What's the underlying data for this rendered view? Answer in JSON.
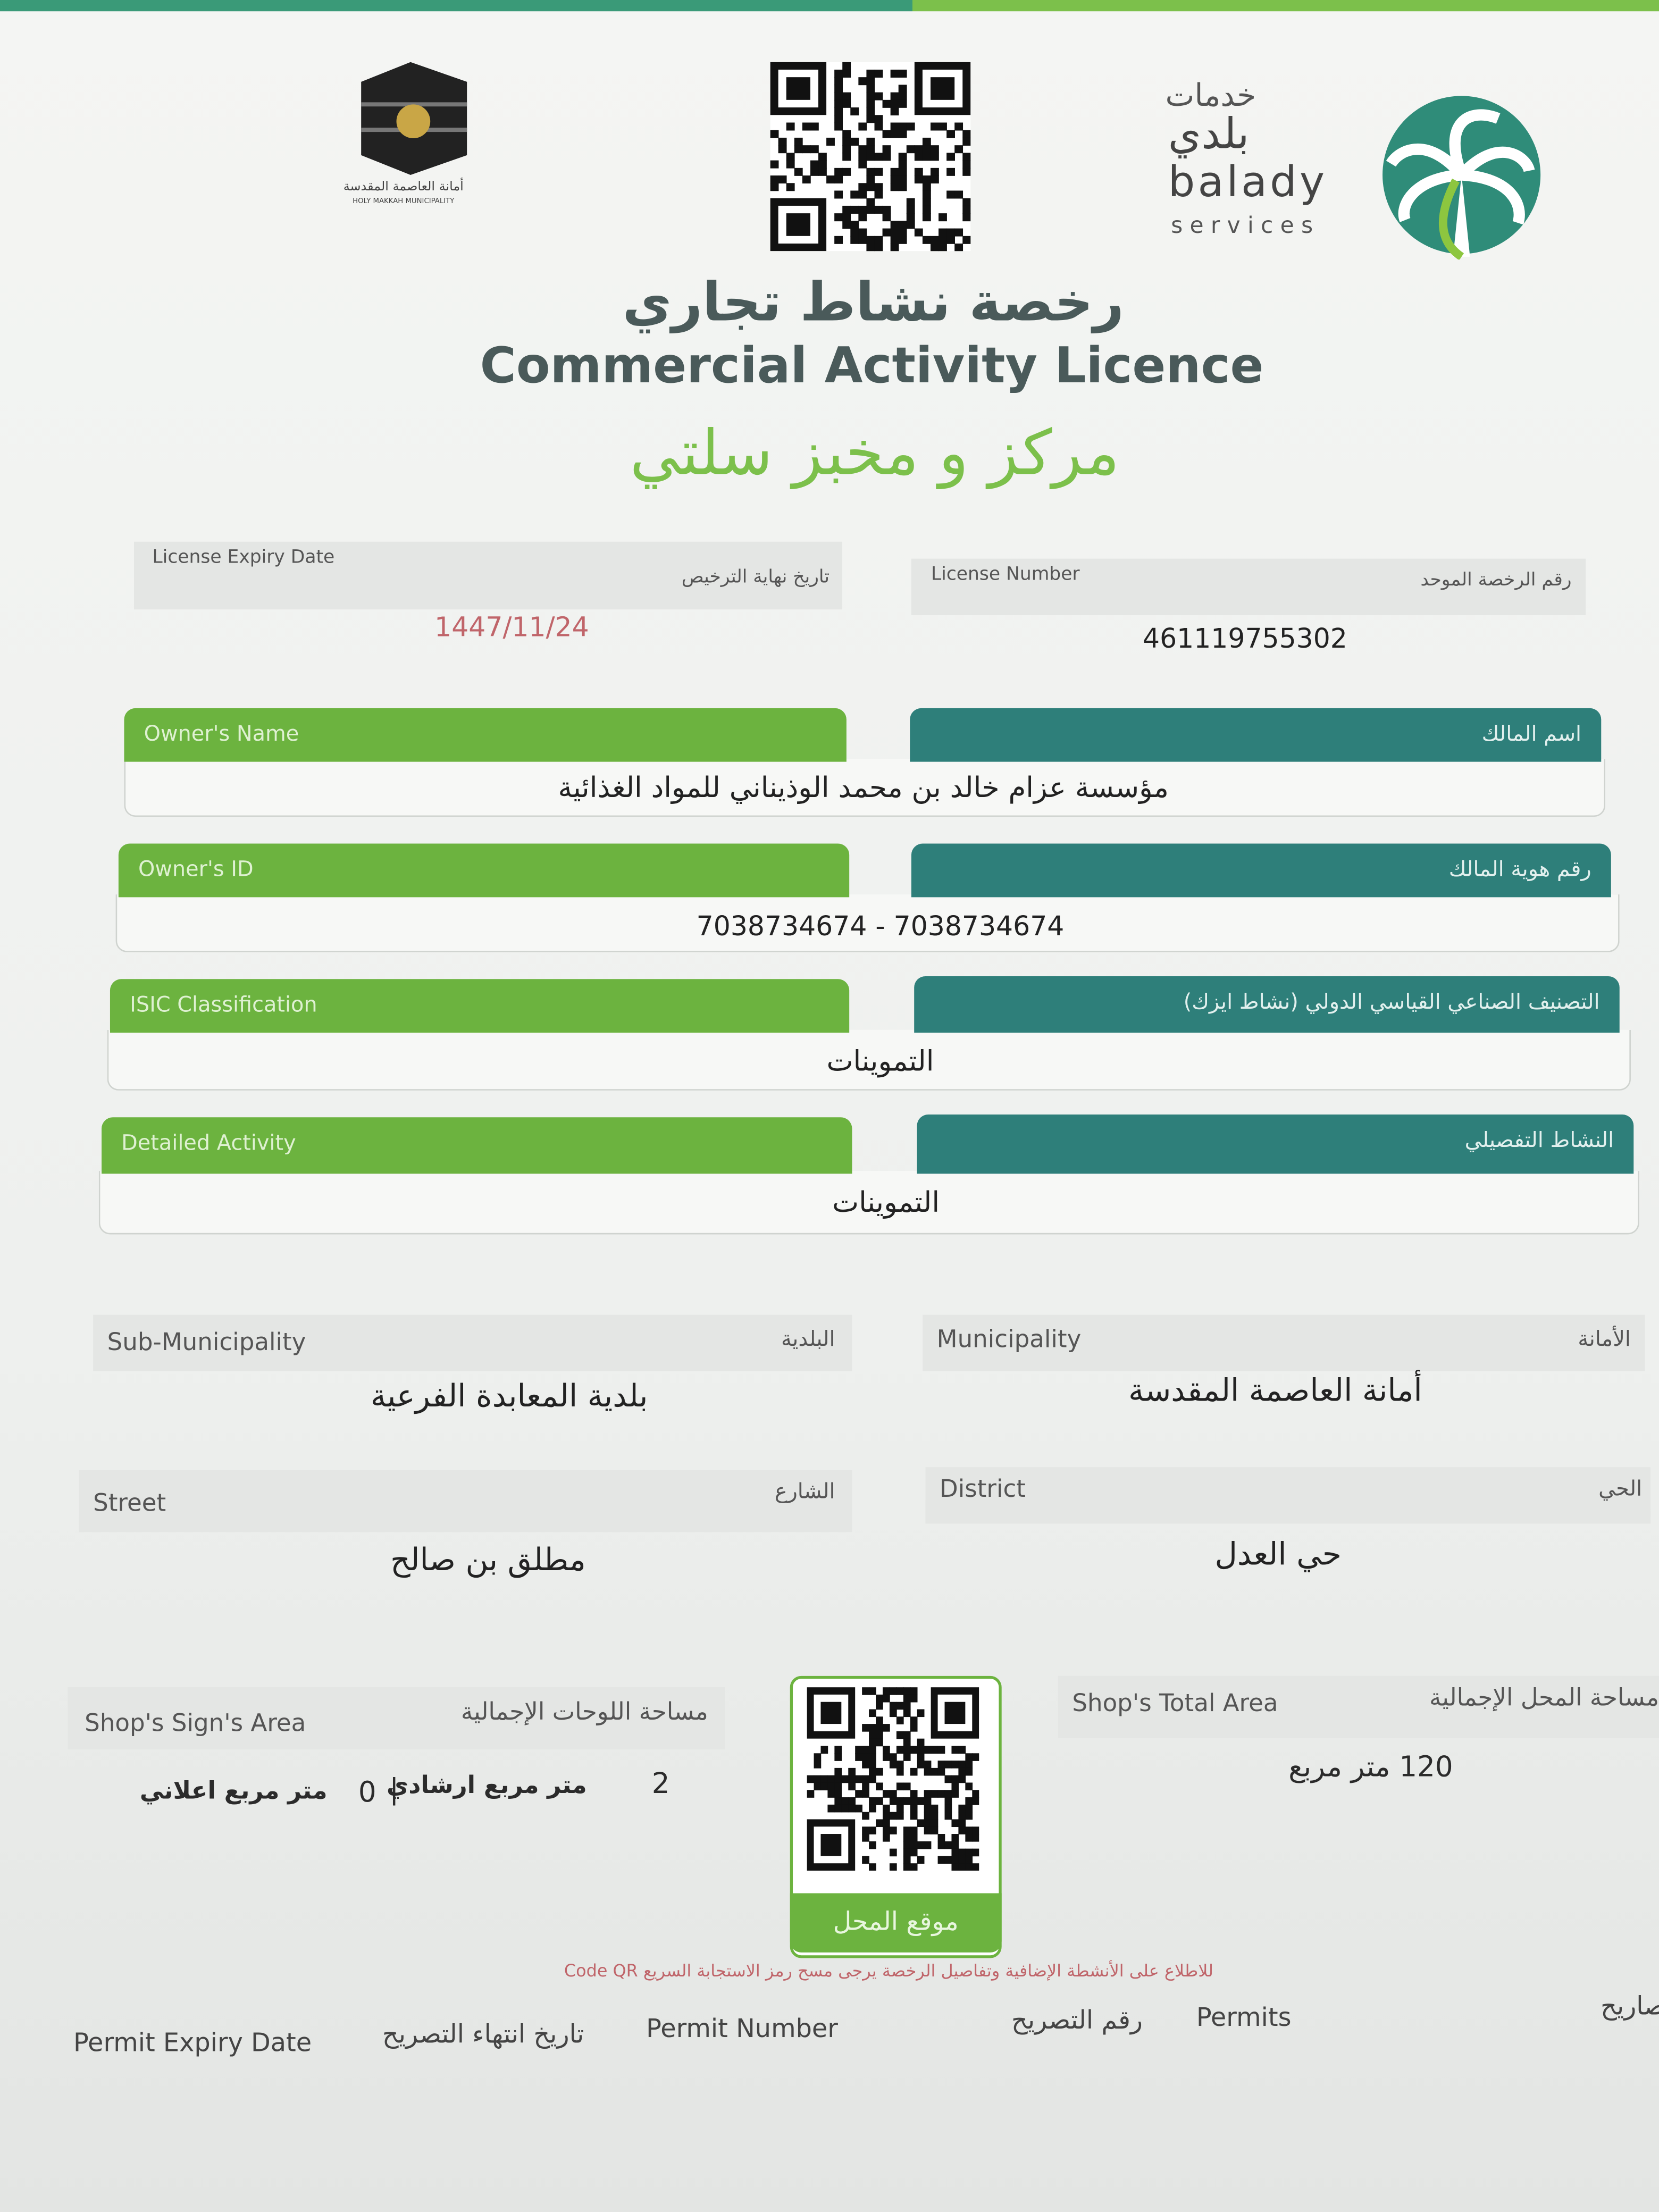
{
  "header": {
    "municipality_logo_ar": "أمانة العاصمة المقدسة",
    "municipality_logo_en": "HOLY MAKKAH MUNICIPALITY",
    "balady_services_ar": "خدمات",
    "balady_ar": "بلدي",
    "balady_en": "balady",
    "services_en": "services"
  },
  "title": {
    "ar": "رخصة نشاط تجاري",
    "en": "Commercial Activity Licence",
    "business_name": "مركز و مخبز سلتي"
  },
  "license_expiry": {
    "label_en": "License Expiry Date",
    "label_ar": "تاريخ نهاية الترخيص",
    "value": "1447/11/24"
  },
  "license_number": {
    "label_en": "License Number",
    "label_ar": "رقم الرخصة الموحد",
    "value": "461119755302"
  },
  "owner_name": {
    "label_en": "Owner's Name",
    "label_ar": "اسم المالك",
    "value": "مؤسسة عزام خالد بن محمد الوذيناني للمواد الغذائية"
  },
  "owner_id": {
    "label_en": "Owner's ID",
    "label_ar": "رقم هوية المالك",
    "value": "7038734674 - 7038734674"
  },
  "isic": {
    "label_en": "ISIC Classification",
    "label_ar": "التصنيف الصناعي القياسي الدولي (نشاط ايزك)",
    "value": "التموينات"
  },
  "detailed_activity": {
    "label_en": "Detailed Activity",
    "label_ar": "النشاط التفصيلي",
    "value": "التموينات"
  },
  "sub_municipality": {
    "label_en": "Sub-Municipality",
    "label_ar": "البلدية",
    "value": "بلدية المعابدة الفرعية"
  },
  "municipality": {
    "label_en": "Municipality",
    "label_ar": "الأمانة",
    "value": "أمانة العاصمة المقدسة"
  },
  "street": {
    "label_en": "Street",
    "label_ar": "الشارع",
    "value": "مطلق بن صالح"
  },
  "district": {
    "label_en": "District",
    "label_ar": "الحي",
    "value": "حي العدل"
  },
  "sign_area": {
    "label_en": "Shop's Sign's Area",
    "label_ar": "مساحة اللوحات الإجمالية",
    "guide_value": "2",
    "guide_unit": "متر مربع ارشادي",
    "separator": "|",
    "ad_value": "0",
    "ad_unit": "متر مربع اعلاني"
  },
  "total_area": {
    "label_en": "Shop's Total Area",
    "label_ar": "مساحة المحل الإجمالية",
    "value": "120 متر مربع"
  },
  "qr_label": "موقع المحل",
  "qr_note": "للاطلاع على الأنشطة الإضافية وتفاصيل الرخصة يرجى مسح رمز الاستجابة السريع Code QR",
  "permits": {
    "expiry_en": "Permit Expiry Date",
    "expiry_ar": "تاريخ انتهاء التصريح",
    "number_en": "Permit Number",
    "number_ar": "رقم التصريح",
    "permits_en": "Permits",
    "permits_ar": "تصاريح"
  }
}
